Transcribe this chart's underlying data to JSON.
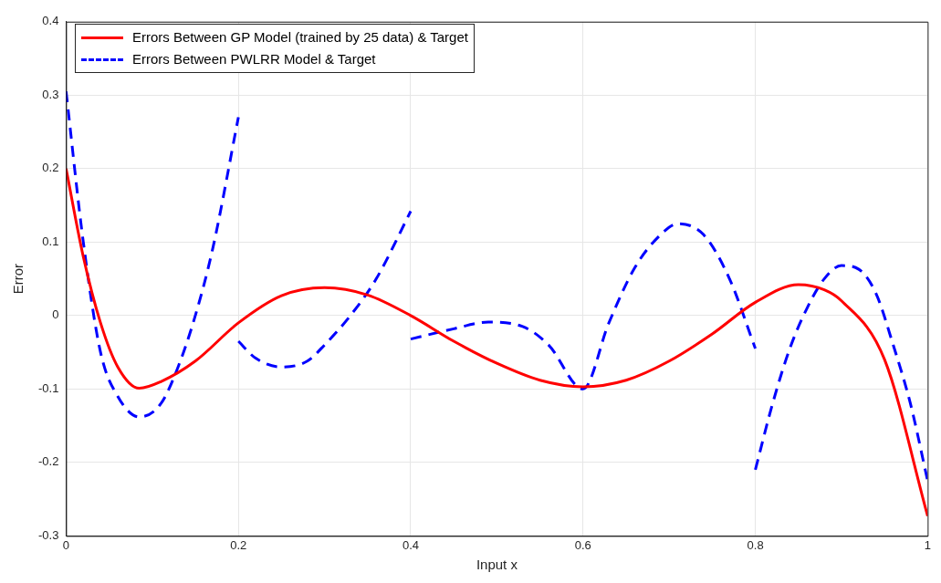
{
  "chart_data": {
    "type": "line",
    "xlabel": "Input x",
    "ylabel": "Error",
    "xlim": [
      0,
      1
    ],
    "ylim": [
      -0.3,
      0.4
    ],
    "xticks": [
      0,
      0.2,
      0.4,
      0.6,
      0.8,
      1
    ],
    "yticks": [
      -0.3,
      -0.2,
      -0.1,
      0,
      0.1,
      0.2,
      0.3,
      0.4
    ],
    "grid": true,
    "legend": "top left",
    "marker": "none",
    "series": [
      {
        "name": "Errors Between GP Model (trained by 25 data) & Target",
        "color": "#ff0000",
        "line_style": "solid",
        "x": [
          0,
          0.02,
          0.04,
          0.06,
          0.085,
          0.11,
          0.15,
          0.2,
          0.25,
          0.3,
          0.35,
          0.4,
          0.45,
          0.5,
          0.55,
          0.6,
          0.65,
          0.7,
          0.75,
          0.8,
          0.85,
          0.88,
          0.9,
          0.95,
          1
        ],
        "values": [
          0.2,
          0.08,
          -0.01,
          -0.07,
          -0.099,
          -0.09,
          -0.062,
          -0.01,
          0.027,
          0.038,
          0.028,
          0,
          -0.035,
          -0.065,
          -0.088,
          -0.097,
          -0.088,
          -0.062,
          -0.025,
          0.018,
          0.042,
          0.035,
          0.02,
          -0.06,
          -0.273
        ]
      },
      {
        "name": "Errors Between PWLRR Model & Target",
        "color": "#0000ff",
        "line_style": "dashed",
        "x": [
          0,
          0.02,
          0.04,
          0.06,
          0.085,
          0.11,
          0.13,
          0.15,
          0.17,
          0.2
        ],
        "values": [
          0.305,
          0.1,
          -0.05,
          -0.11,
          -0.138,
          -0.12,
          -0.07,
          0,
          0.09,
          0.27
        ]
      },
      {
        "color": "#0000ff",
        "line_style": "dashed",
        "x": [
          0.2,
          0.22,
          0.25,
          0.28,
          0.3,
          0.33,
          0.36,
          0.4
        ],
        "values": [
          -0.035,
          -0.058,
          -0.07,
          -0.062,
          -0.04,
          0,
          0.05,
          0.142
        ]
      },
      {
        "color": "#0000ff",
        "line_style": "dashed",
        "x": [
          0.4,
          0.45,
          0.49,
          0.53,
          0.56,
          0.6,
          0.63,
          0.66,
          0.69,
          0.71,
          0.74,
          0.77,
          0.8
        ],
        "values": [
          -0.032,
          -0.018,
          -0.009,
          -0.015,
          -0.04,
          -0.1,
          -0.01,
          0.065,
          0.11,
          0.125,
          0.11,
          0.05,
          -0.045
        ]
      },
      {
        "color": "#0000ff",
        "line_style": "dashed",
        "x": [
          0.8,
          0.82,
          0.84,
          0.86,
          0.88,
          0.9,
          0.92,
          0.94,
          0.96,
          0.98,
          1
        ],
        "values": [
          -0.21,
          -0.12,
          -0.045,
          0.01,
          0.05,
          0.068,
          0.063,
          0.03,
          -0.04,
          -0.12,
          -0.225
        ]
      }
    ]
  }
}
